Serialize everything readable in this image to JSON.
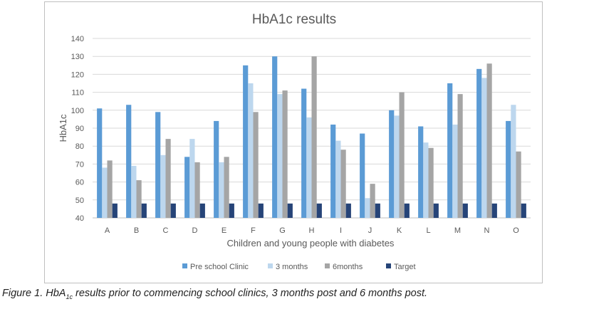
{
  "chart_data": {
    "type": "bar",
    "title": "HbA1c results",
    "xlabel": "Children and young people with diabetes",
    "ylabel": "HbA1c",
    "ylim": [
      40,
      140
    ],
    "yticks": [
      40,
      50,
      60,
      70,
      80,
      90,
      100,
      110,
      120,
      130,
      140
    ],
    "grid": true,
    "legend_position": "bottom",
    "categories": [
      "A",
      "B",
      "C",
      "D",
      "E",
      "F",
      "G",
      "H",
      "I",
      "J",
      "K",
      "L",
      "M",
      "N",
      "O"
    ],
    "series": [
      {
        "name": "Pre school Clinic",
        "color": "#5b9bd5",
        "values": [
          101,
          103,
          99,
          74,
          94,
          125,
          130,
          112,
          92,
          87,
          100,
          91,
          115,
          123,
          94
        ]
      },
      {
        "name": "3 months",
        "color": "#bdd7ee",
        "values": [
          68,
          69,
          75,
          84,
          71,
          115,
          109,
          96,
          83,
          51,
          97,
          82,
          92,
          118,
          103
        ]
      },
      {
        "name": "6months",
        "color": "#a5a5a5",
        "values": [
          72,
          61,
          84,
          71,
          74,
          99,
          111,
          130,
          78,
          59,
          110,
          79,
          109,
          126,
          77
        ]
      },
      {
        "name": "Target",
        "color": "#264478",
        "values": [
          48,
          48,
          48,
          48,
          48,
          48,
          48,
          48,
          48,
          48,
          48,
          48,
          48,
          48,
          48
        ]
      }
    ]
  },
  "caption": {
    "prefix": "Figure 1. HbA",
    "subscript": "1c",
    "suffix": " results prior to commencing school clinics, 3 months post and 6 months post."
  }
}
